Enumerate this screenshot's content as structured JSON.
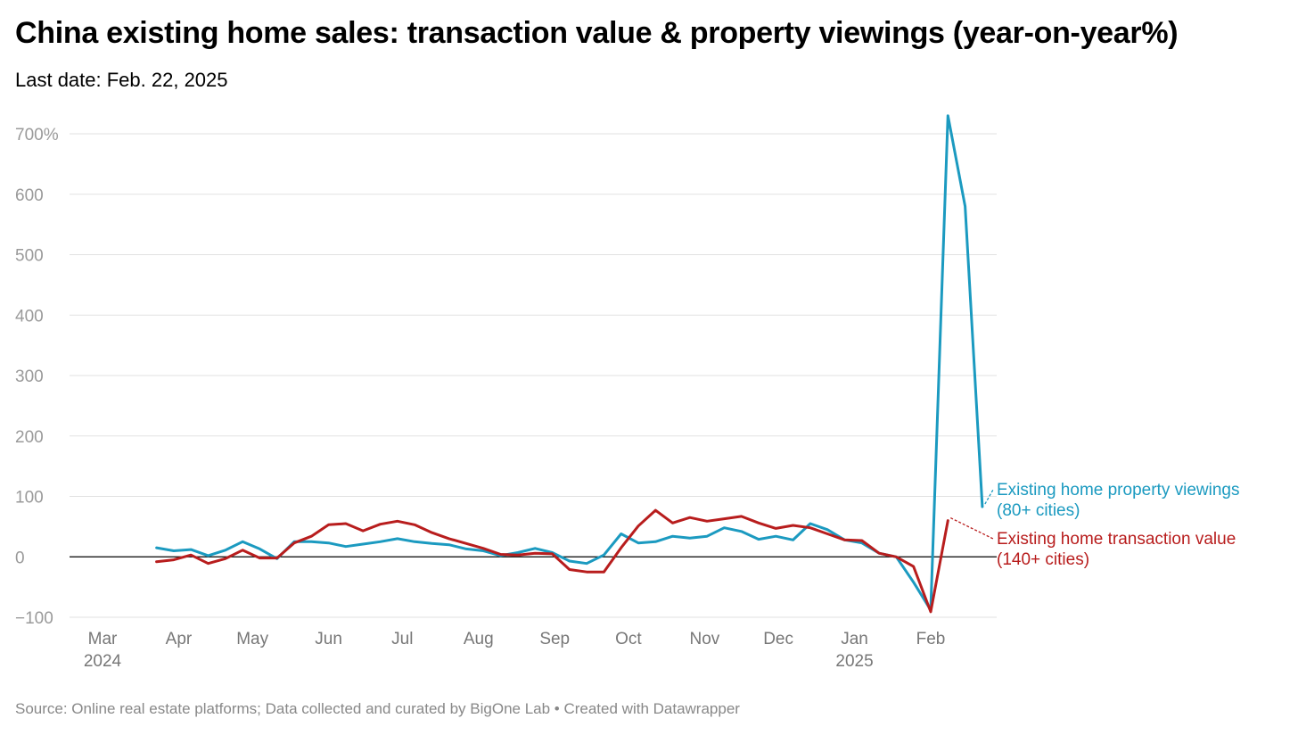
{
  "title": "China existing home sales: transaction value & property viewings (year-on-year%)",
  "subtitle": "Last date: Feb. 22, 2025",
  "footer": "Source: Online real estate platforms; Data collected and curated by BigOne Lab • Created with Datawrapper",
  "chart_data": {
    "type": "line",
    "ylim": [
      -100,
      730
    ],
    "yticks": [
      {
        "value": 700,
        "label": "700%"
      },
      {
        "value": 600,
        "label": "600"
      },
      {
        "value": 500,
        "label": "500"
      },
      {
        "value": 400,
        "label": "400"
      },
      {
        "value": 300,
        "label": "300"
      },
      {
        "value": 200,
        "label": "200"
      },
      {
        "value": 100,
        "label": "100"
      },
      {
        "value": 0,
        "label": "0"
      },
      {
        "value": -100,
        "label": "−100"
      }
    ],
    "xticks": [
      {
        "date": "2024-03-01",
        "label": "Mar",
        "sublabel": "2024"
      },
      {
        "date": "2024-04-01",
        "label": "Apr",
        "sublabel": ""
      },
      {
        "date": "2024-05-01",
        "label": "May",
        "sublabel": ""
      },
      {
        "date": "2024-06-01",
        "label": "Jun",
        "sublabel": ""
      },
      {
        "date": "2024-07-01",
        "label": "Jul",
        "sublabel": ""
      },
      {
        "date": "2024-08-01",
        "label": "Aug",
        "sublabel": ""
      },
      {
        "date": "2024-09-01",
        "label": "Sep",
        "sublabel": ""
      },
      {
        "date": "2024-10-01",
        "label": "Oct",
        "sublabel": ""
      },
      {
        "date": "2024-11-01",
        "label": "Nov",
        "sublabel": ""
      },
      {
        "date": "2024-12-01",
        "label": "Dec",
        "sublabel": ""
      },
      {
        "date": "2025-01-01",
        "label": "Jan",
        "sublabel": "2025"
      },
      {
        "date": "2025-02-01",
        "label": "Feb",
        "sublabel": ""
      }
    ],
    "grid": true,
    "x": [
      "2024-03-23",
      "2024-03-30",
      "2024-04-06",
      "2024-04-13",
      "2024-04-20",
      "2024-04-27",
      "2024-05-04",
      "2024-05-11",
      "2024-05-18",
      "2024-05-25",
      "2024-06-01",
      "2024-06-08",
      "2024-06-15",
      "2024-06-22",
      "2024-06-29",
      "2024-07-06",
      "2024-07-13",
      "2024-07-20",
      "2024-07-27",
      "2024-08-03",
      "2024-08-10",
      "2024-08-17",
      "2024-08-24",
      "2024-08-31",
      "2024-09-07",
      "2024-09-14",
      "2024-09-21",
      "2024-09-28",
      "2024-10-05",
      "2024-10-12",
      "2024-10-19",
      "2024-10-26",
      "2024-11-02",
      "2024-11-09",
      "2024-11-16",
      "2024-11-23",
      "2024-11-30",
      "2024-12-07",
      "2024-12-14",
      "2024-12-21",
      "2024-12-28",
      "2025-01-04",
      "2025-01-11",
      "2025-01-18",
      "2025-01-25",
      "2025-02-01",
      "2025-02-08",
      "2025-02-15",
      "2025-02-22"
    ],
    "series": [
      {
        "name": "Existing home property viewings",
        "label_lines": [
          "Existing home property viewings",
          "(80+ cities)"
        ],
        "color": "#1b9ac0",
        "values": [
          15,
          10,
          12,
          2,
          11,
          25,
          13,
          -3,
          25,
          25,
          23,
          17,
          21,
          25,
          30,
          25,
          22,
          20,
          13,
          10,
          2,
          7,
          14,
          7,
          -7,
          -11,
          3,
          38,
          23,
          25,
          34,
          31,
          34,
          48,
          42,
          29,
          34,
          28,
          55,
          45,
          28,
          23,
          6,
          0,
          -42,
          -88,
          730,
          580,
          83
        ]
      },
      {
        "name": "Existing home transaction value",
        "label_lines": [
          "Existing home transaction value",
          "(140+ cities)"
        ],
        "color": "#b81d1d",
        "values": [
          -8,
          -5,
          3,
          -11,
          -3,
          11,
          -2,
          -2,
          23,
          34,
          53,
          55,
          43,
          54,
          59,
          53,
          40,
          30,
          22,
          14,
          4,
          3,
          6,
          5,
          -21,
          -25,
          -25,
          15,
          51,
          77,
          56,
          65,
          59,
          63,
          67,
          56,
          47,
          52,
          48,
          38,
          28,
          27,
          6,
          0,
          -16,
          -91,
          60,
          null,
          null
        ]
      }
    ]
  }
}
